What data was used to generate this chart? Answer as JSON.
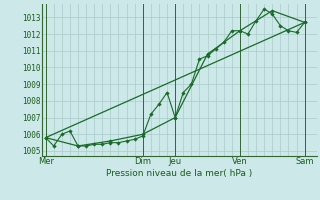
{
  "xlabel": "Pression niveau de la mer( hPa )",
  "bg_color": "#cce8e8",
  "grid_color": "#aacccc",
  "line_color": "#1a6b2a",
  "sep_color": "#336633",
  "ylim": [
    1004.7,
    1013.8
  ],
  "yticks": [
    1005,
    1006,
    1007,
    1008,
    1009,
    1010,
    1011,
    1012,
    1013
  ],
  "day_labels": [
    "Mer",
    "Dim",
    "Jeu",
    "Ven",
    "Sam"
  ],
  "day_positions": [
    0,
    12,
    16,
    24,
    32
  ],
  "xlim": [
    -0.5,
    33.5
  ],
  "line1_x": [
    0,
    1,
    2,
    3,
    4,
    5,
    6,
    7,
    8,
    9,
    10,
    11,
    12,
    13,
    14,
    15,
    16,
    17,
    18,
    19,
    20,
    21,
    22,
    23,
    24,
    25,
    26,
    27,
    28,
    29,
    30,
    31,
    32
  ],
  "line1_y": [
    1005.8,
    1005.3,
    1006.0,
    1006.2,
    1005.3,
    1005.3,
    1005.4,
    1005.4,
    1005.5,
    1005.5,
    1005.6,
    1005.7,
    1005.9,
    1007.2,
    1007.8,
    1008.5,
    1007.0,
    1008.5,
    1009.0,
    1010.5,
    1010.7,
    1011.1,
    1011.5,
    1012.2,
    1012.2,
    1012.0,
    1012.8,
    1013.5,
    1013.2,
    1012.5,
    1012.2,
    1012.1,
    1012.7
  ],
  "line2_x": [
    0,
    4,
    8,
    12,
    16,
    20,
    24,
    28,
    32
  ],
  "line2_y": [
    1005.8,
    1005.3,
    1005.6,
    1006.0,
    1007.0,
    1010.8,
    1012.2,
    1013.4,
    1012.7
  ],
  "line3_x": [
    0,
    32
  ],
  "line3_y": [
    1005.8,
    1012.7
  ],
  "vgrid_step": 1
}
